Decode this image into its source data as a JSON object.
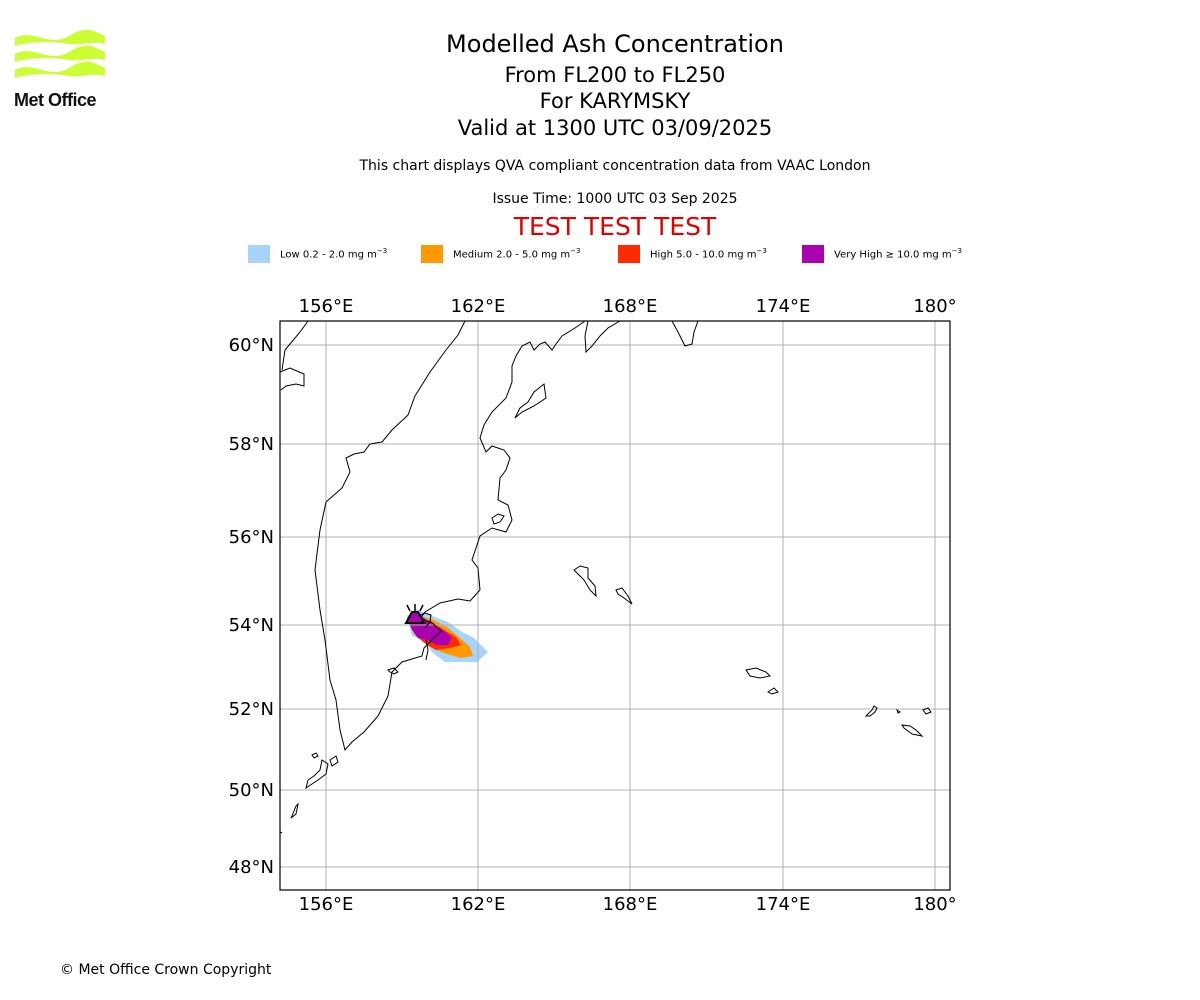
{
  "logo": {
    "text": "Met Office",
    "color": "#ccff33"
  },
  "header": {
    "title": "Modelled Ash Concentration",
    "level": "From FL200 to FL250",
    "volcano": "For KARYMSKY",
    "valid": "Valid at 1300 UTC 03/09/2025",
    "subtitle": "This chart displays QVA compliant concentration data from VAAC London",
    "issue_time": "Issue Time: 1000 UTC 03 Sep 2025",
    "test_banner": "TEST TEST TEST",
    "test_color": "#e10000"
  },
  "legend": [
    {
      "prefix": "Low 0.2 - 2.0 mg m",
      "sup": "−3",
      "color": "#a6d4fa"
    },
    {
      "prefix": "Medium 2.0 - 5.0 mg m",
      "sup": "−3",
      "color": "#ff9900"
    },
    {
      "prefix": "High 5.0 - 10.0 mg m",
      "sup": "−3",
      "color": "#ff2a00"
    },
    {
      "prefix": "Very High  ≥  10.0 mg m",
      "sup": "−3",
      "color": "#aa00b0"
    }
  ],
  "map": {
    "lon_ticks": [
      "156°E",
      "162°E",
      "168°E",
      "174°E",
      "180°"
    ],
    "lat_ticks": [
      "60°N",
      "58°N",
      "56°N",
      "54°N",
      "52°N",
      "50°N",
      "48°N"
    ],
    "gridlines": true,
    "volcano_marker": "volcano-icon"
  },
  "footer": {
    "copyright": "© Met Office Crown Copyright"
  }
}
